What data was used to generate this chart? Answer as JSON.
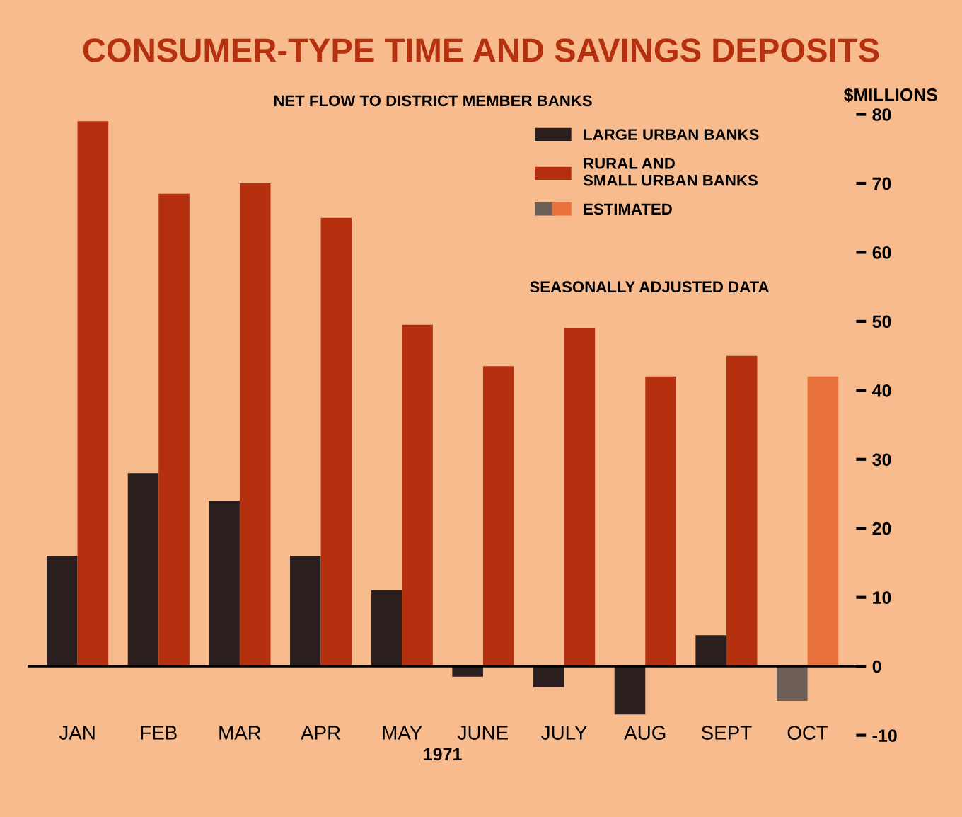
{
  "chart_data": {
    "type": "bar",
    "title": "CONSUMER-TYPE TIME AND SAVINGS DEPOSITS",
    "subtitle": "NET FLOW TO DISTRICT MEMBER BANKS",
    "ylabel": "$MILLIONS",
    "xlabel": "1971",
    "categories": [
      "JAN",
      "FEB",
      "MAR",
      "APR",
      "MAY",
      "JUNE",
      "JULY",
      "AUG",
      "SEPT",
      "OCT"
    ],
    "series": [
      {
        "name": "LARGE URBAN BANKS",
        "color": "#2a1e1e",
        "colors": [
          "#2a1e1e",
          "#2a1e1e",
          "#2a1e1e",
          "#2a1e1e",
          "#2a1e1e",
          "#2a1e1e",
          "#2a1e1e",
          "#2a1e1e",
          "#2a1e1e",
          "#6e5e58"
        ],
        "values": [
          16,
          28,
          24,
          16,
          11,
          -1.5,
          -3,
          -7,
          4.5,
          -5
        ]
      },
      {
        "name": "RURAL AND\nSMALL URBAN BANKS",
        "color": "#b5300f",
        "colors": [
          "#b5300f",
          "#b5300f",
          "#b5300f",
          "#b5300f",
          "#b5300f",
          "#b5300f",
          "#b5300f",
          "#b5300f",
          "#b5300f",
          "#e8703a"
        ],
        "values": [
          79,
          68.5,
          70,
          65,
          49.5,
          43.5,
          49,
          42,
          45,
          42
        ]
      }
    ],
    "annotations": [
      "ESTIMATED",
      "SEASONALLY ADJUSTED DATA"
    ],
    "ylim": [
      -10,
      80
    ],
    "yticks": [
      -10,
      0,
      10,
      20,
      30,
      40,
      50,
      60,
      70,
      80
    ],
    "legend": "top right"
  }
}
